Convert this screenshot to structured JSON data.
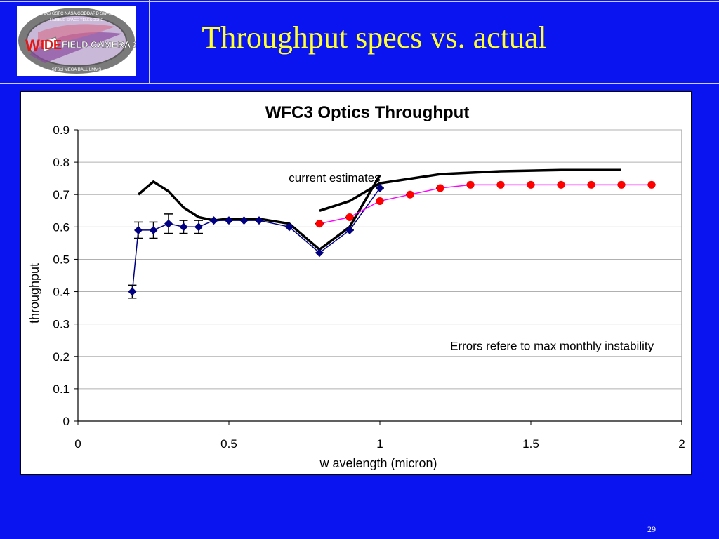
{
  "slide": {
    "title": "Throughput specs vs. actual",
    "page_number": "29",
    "colors": {
      "background": "#0a14f0",
      "title": "#ffff33"
    }
  },
  "logo": {
    "icon": "wfc3-logo-icon",
    "text": "WIDE FIELD CAMERA 3",
    "ring_text": "JPL IAS GSFC NASA/GODDARD SWALES HUBBLE SPACE TELESCOPE BALL LMMS MEGA STScI"
  },
  "chart_data": {
    "type": "scatter",
    "title": "WFC3 Optics Throughput",
    "xlabel": "w avelength (micron)",
    "ylabel": "throughput",
    "xlim": [
      0,
      2
    ],
    "ylim": [
      0,
      0.9
    ],
    "x_ticks": [
      "0",
      "0.5",
      "1",
      "1.5",
      "2"
    ],
    "y_ticks": [
      "0",
      "0.1",
      "0.2",
      "0.3",
      "0.4",
      "0.5",
      "0.6",
      "0.7",
      "0.8",
      "0.9"
    ],
    "grid": "horizontal",
    "annotations": [
      {
        "text": "current estimates",
        "x": 0.85,
        "y": 0.74
      },
      {
        "text": "Errors refere to max monthly instability",
        "x": 1.57,
        "y": 0.22
      }
    ],
    "series": [
      {
        "style": "line",
        "color": "#000000",
        "x": [
          0.2,
          0.25,
          0.3,
          0.35,
          0.4,
          0.45,
          0.5,
          0.55,
          0.6,
          0.7,
          0.8,
          0.9,
          1.0
        ],
        "y": [
          0.7,
          0.74,
          0.71,
          0.66,
          0.63,
          0.62,
          0.625,
          0.625,
          0.625,
          0.61,
          0.53,
          0.6,
          0.76
        ]
      },
      {
        "style": "line",
        "color": "#000000",
        "x": [
          0.8,
          0.9,
          1.0,
          1.2,
          1.4,
          1.6,
          1.8
        ],
        "y": [
          0.65,
          0.68,
          0.735,
          0.763,
          0.772,
          0.776,
          0.776
        ]
      },
      {
        "style": "markers-errorbars",
        "color": "#000080",
        "marker": "diamond",
        "x": [
          0.18,
          0.2,
          0.25,
          0.3,
          0.35,
          0.4,
          0.45,
          0.5,
          0.55,
          0.6,
          0.7,
          0.8,
          0.9,
          1.0
        ],
        "y": [
          0.4,
          0.59,
          0.59,
          0.61,
          0.6,
          0.6,
          0.62,
          0.62,
          0.62,
          0.62,
          0.6,
          0.52,
          0.59,
          0.72
        ],
        "err": [
          0.02,
          0.025,
          0.025,
          0.03,
          0.02,
          0.02,
          0.005,
          0.005,
          0.005,
          0.005,
          0.005,
          0.005,
          0.005,
          0.005
        ]
      },
      {
        "style": "line-markers",
        "color": "#ff0000",
        "line_color": "#ff00ff",
        "marker": "circle",
        "x": [
          0.8,
          0.9,
          1.0,
          1.1,
          1.2,
          1.3,
          1.4,
          1.5,
          1.6,
          1.7,
          1.8,
          1.9
        ],
        "y": [
          0.61,
          0.63,
          0.68,
          0.7,
          0.72,
          0.73,
          0.73,
          0.73,
          0.73,
          0.73,
          0.73,
          0.73
        ]
      }
    ]
  }
}
